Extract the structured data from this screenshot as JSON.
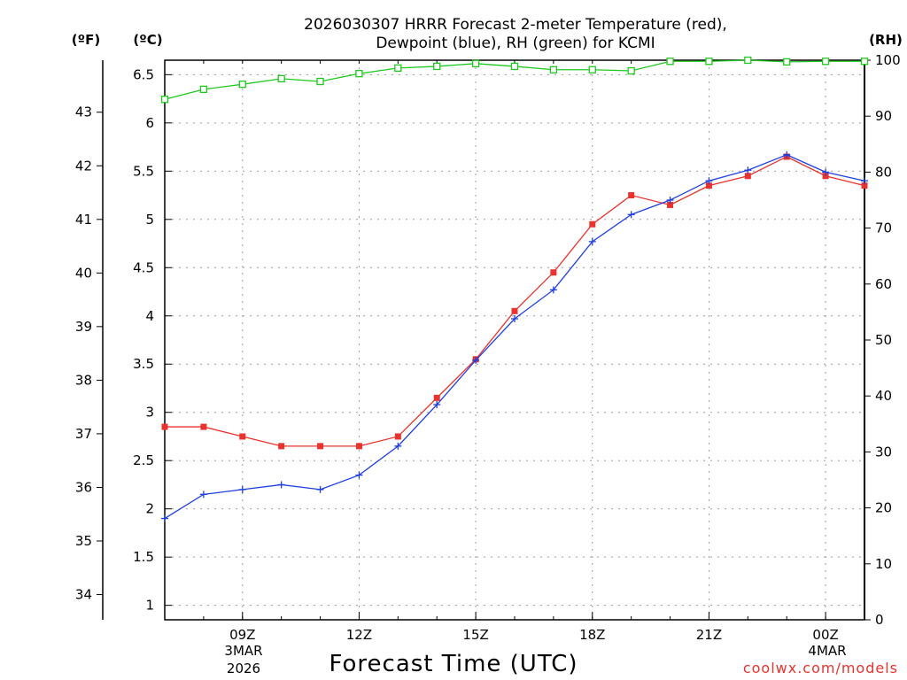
{
  "title": {
    "line1": "2026030307 HRRR Forecast 2-meter Temperature (red),",
    "line2": "Dewpoint (blue), RH (green) for KCMI"
  },
  "units": {
    "left_f": "(ºF)",
    "left_c": "(ºC)",
    "right": "(RH)"
  },
  "xlabel": "Forecast Time (UTC)",
  "watermark": "coolwx.com/models",
  "date_labels": {
    "start_day": "3MAR",
    "start_year": "2026",
    "end_day": "4MAR"
  },
  "colors": {
    "temperature": "#e8332e",
    "dewpoint": "#1f3fe0",
    "rh": "#1ec81e",
    "grid": "#9a9a9a",
    "axis": "#000000"
  },
  "chart_data": {
    "type": "line",
    "x": [
      "07Z",
      "08Z",
      "09Z",
      "10Z",
      "11Z",
      "12Z",
      "13Z",
      "14Z",
      "15Z",
      "16Z",
      "17Z",
      "18Z",
      "19Z",
      "20Z",
      "21Z",
      "22Z",
      "23Z",
      "00Z",
      "01Z"
    ],
    "x_range": [
      7,
      25
    ],
    "x_ticks": [
      {
        "hour": 9,
        "label": "09Z"
      },
      {
        "hour": 12,
        "label": "12Z"
      },
      {
        "hour": 15,
        "label": "15Z"
      },
      {
        "hour": 18,
        "label": "18Z"
      },
      {
        "hour": 21,
        "label": "21Z"
      },
      {
        "hour": 24,
        "label": "00Z"
      }
    ],
    "y_left_c": {
      "range": [
        0.85,
        6.65
      ],
      "ticks": [
        "1",
        "1.5",
        "2",
        "2.5",
        "3",
        "3.5",
        "4",
        "4.5",
        "5",
        "5.5",
        "6",
        "6.5"
      ]
    },
    "y_left_f": {
      "ticks": [
        "34",
        "35",
        "36",
        "37",
        "38",
        "39",
        "40",
        "41",
        "42",
        "43"
      ]
    },
    "y_right_rh": {
      "range": [
        0,
        100
      ],
      "ticks": [
        "0",
        "10",
        "20",
        "30",
        "40",
        "50",
        "60",
        "70",
        "80",
        "90",
        "100"
      ]
    },
    "series": [
      {
        "name": "Temperature",
        "axis": "c",
        "marker": "filled-square",
        "values": [
          2.85,
          2.85,
          2.75,
          2.65,
          2.65,
          2.65,
          2.75,
          3.15,
          3.55,
          4.05,
          4.45,
          4.95,
          5.25,
          5.15,
          5.35,
          5.45,
          5.65,
          5.45,
          5.35
        ]
      },
      {
        "name": "Dewpoint",
        "axis": "c",
        "marker": "plus",
        "values": [
          1.9,
          2.15,
          2.2,
          2.25,
          2.2,
          2.35,
          2.65,
          3.08,
          3.54,
          3.97,
          4.27,
          4.77,
          5.05,
          5.2,
          5.4,
          5.51,
          5.67,
          5.49,
          5.4
        ]
      },
      {
        "name": "RH",
        "axis": "rh",
        "marker": "open-square",
        "values": [
          93,
          94.8,
          95.7,
          96.7,
          96.2,
          97.6,
          98.6,
          98.9,
          99.4,
          98.9,
          98.3,
          98.3,
          98.1,
          99.8,
          99.8,
          100,
          99.7,
          99.8,
          99.8
        ]
      }
    ]
  }
}
